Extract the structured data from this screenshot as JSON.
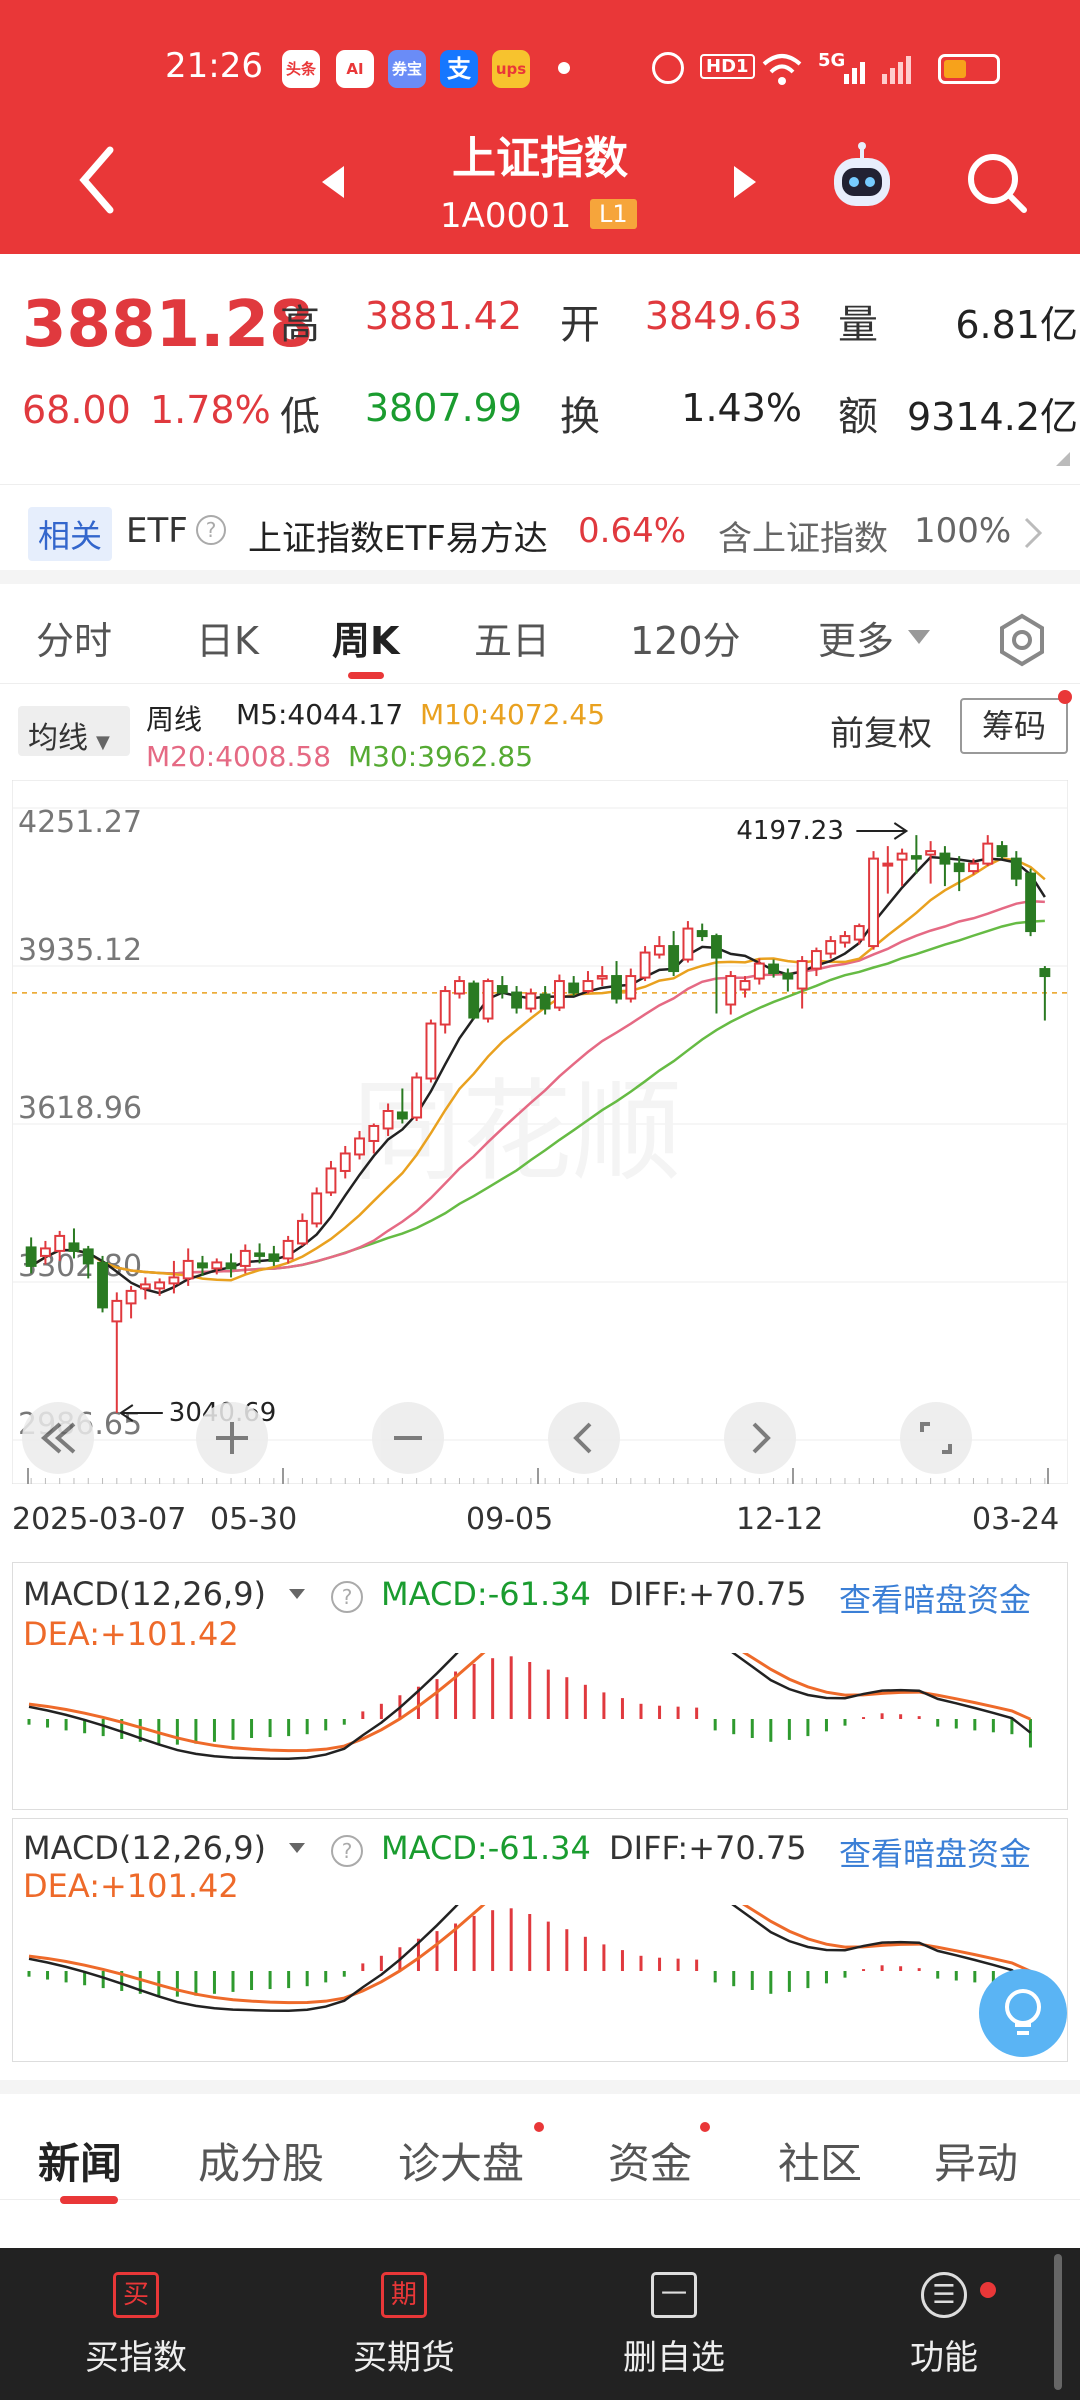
{
  "status_bar": {
    "time": "21:26",
    "apps": [
      "头条",
      "AI",
      "券宝",
      "支",
      "ups"
    ],
    "icons": [
      "alarm-icon",
      "hd-icon",
      "wifi-icon",
      "signal-5g-icon",
      "signal-icon",
      "battery-icon"
    ],
    "hd": "HD1",
    "net": "5G"
  },
  "header": {
    "title": "上证指数",
    "code": "1A0001",
    "level": "L1"
  },
  "quote": {
    "price": "3881.28",
    "change": "68.00",
    "change_pct": "1.78%",
    "high_label": "高",
    "high": "3881.42",
    "open_label": "开",
    "open": "3849.63",
    "vol_label": "量",
    "vol": "6.81亿",
    "low_label": "低",
    "low": "3807.99",
    "turn_label": "换",
    "turn": "1.43%",
    "amt_label": "额",
    "amt": "9314.2亿"
  },
  "etf": {
    "tag": "相关",
    "etf_label": "ETF",
    "etf_name": "上证指数ETF易方达",
    "etf_pct": "0.64%",
    "contain_label": "含上证指数",
    "contain_pct": "100%"
  },
  "period_tabs": [
    "分时",
    "日K",
    "周K",
    "五日",
    "120分",
    "更多"
  ],
  "active_tab": 2,
  "chart_header": {
    "ma_select": "均线",
    "period": "周线",
    "m5": "M5:4044.17",
    "m10": "M10:4072.45",
    "m20": "M20:4008.58",
    "m30": "M30:3962.85",
    "adjust": "前复权",
    "chip": "筹码"
  },
  "chart_data": {
    "type": "candlestick",
    "y_ticks": [
      "4251.27",
      "3935.12",
      "3618.96",
      "3302.80",
      "2986.65"
    ],
    "ylim": [
      2986.65,
      4251.27
    ],
    "x_labels": [
      "2025-03-07",
      "05-30",
      "09-05",
      "12-12",
      "03-24"
    ],
    "max_label": "4197.23",
    "min_label": "3040.69",
    "candles": [
      [
        3372,
        3335,
        3392,
        3320
      ],
      [
        3355,
        3370,
        3385,
        3338
      ],
      [
        3365,
        3395,
        3405,
        3345
      ],
      [
        3380,
        3365,
        3410,
        3350
      ],
      [
        3368,
        3340,
        3375,
        3310
      ],
      [
        3341,
        3252,
        3355,
        3242
      ],
      [
        3224,
        3265,
        3282,
        3041
      ],
      [
        3260,
        3285,
        3295,
        3230
      ],
      [
        3290,
        3298,
        3312,
        3268
      ],
      [
        3290,
        3302,
        3310,
        3275
      ],
      [
        3300,
        3312,
        3345,
        3280
      ],
      [
        3310,
        3345,
        3370,
        3295
      ],
      [
        3340,
        3332,
        3355,
        3315
      ],
      [
        3330,
        3342,
        3350,
        3318
      ],
      [
        3340,
        3330,
        3360,
        3312
      ],
      [
        3335,
        3365,
        3378,
        3320
      ],
      [
        3360,
        3355,
        3380,
        3340
      ],
      [
        3358,
        3345,
        3375,
        3335
      ],
      [
        3350,
        3385,
        3395,
        3340
      ],
      [
        3380,
        3425,
        3440,
        3375
      ],
      [
        3420,
        3480,
        3492,
        3412
      ],
      [
        3482,
        3530,
        3545,
        3475
      ],
      [
        3525,
        3560,
        3575,
        3510
      ],
      [
        3558,
        3590,
        3605,
        3548
      ],
      [
        3585,
        3615,
        3620,
        3560
      ],
      [
        3610,
        3645,
        3660,
        3595
      ],
      [
        3642,
        3630,
        3690,
        3620
      ],
      [
        3632,
        3712,
        3722,
        3625
      ],
      [
        3710,
        3820,
        3828,
        3702
      ],
      [
        3818,
        3885,
        3895,
        3800
      ],
      [
        3880,
        3905,
        3915,
        3870
      ],
      [
        3900,
        3832,
        3906,
        3828
      ],
      [
        3830,
        3905,
        3910,
        3822
      ],
      [
        3895,
        3882,
        3915,
        3870
      ],
      [
        3882,
        3852,
        3895,
        3840
      ],
      [
        3850,
        3880,
        3890,
        3842
      ],
      [
        3878,
        3850,
        3895,
        3838
      ],
      [
        3852,
        3905,
        3918,
        3845
      ],
      [
        3900,
        3882,
        3915,
        3875
      ],
      [
        3885,
        3905,
        3925,
        3880
      ],
      [
        3910,
        3915,
        3935,
        3895
      ],
      [
        3915,
        3870,
        3945,
        3860
      ],
      [
        3870,
        3915,
        3930,
        3862
      ],
      [
        3912,
        3962,
        3975,
        3905
      ],
      [
        3958,
        3975,
        3995,
        3950
      ],
      [
        3975,
        3925,
        4005,
        3915
      ],
      [
        3948,
        4010,
        4025,
        3942
      ],
      [
        4005,
        3995,
        4020,
        3985
      ],
      [
        3995,
        3952,
        4000,
        3840
      ],
      [
        3858,
        3915,
        3925,
        3838
      ],
      [
        3888,
        3905,
        3915,
        3872
      ],
      [
        3910,
        3940,
        3950,
        3898
      ],
      [
        3938,
        3921,
        3948,
        3912
      ],
      [
        3920,
        3910,
        3930,
        3884
      ],
      [
        3890,
        3945,
        3955,
        3850
      ],
      [
        3930,
        3965,
        3972,
        3915
      ],
      [
        3960,
        3985,
        3995,
        3950
      ],
      [
        3982,
        3995,
        4005,
        3972
      ],
      [
        3988,
        4015,
        4020,
        3978
      ],
      [
        3975,
        4150,
        4165,
        3968
      ],
      [
        4138,
        4140,
        4175,
        4080
      ],
      [
        4148,
        4160,
        4170,
        4095
      ],
      [
        4155,
        4150,
        4197,
        4120
      ],
      [
        4158,
        4165,
        4185,
        4100
      ],
      [
        4160,
        4140,
        4175,
        4095
      ],
      [
        4140,
        4125,
        4155,
        4085
      ],
      [
        4125,
        4140,
        4150,
        4118
      ],
      [
        4140,
        4180,
        4197,
        4135
      ],
      [
        4175,
        4155,
        4185,
        4150
      ],
      [
        4150,
        4110,
        4165,
        4095
      ],
      [
        4120,
        4005,
        4130,
        3995
      ],
      [
        3929,
        3915,
        3935,
        3826
      ]
    ],
    "ma5_color": "#222222",
    "ma10_color": "#e9a11f",
    "ma20_color": "#e56a84",
    "ma30_color": "#66bb44"
  },
  "macd": {
    "select": "MACD(12,26,9)",
    "macd": "MACD:-61.34",
    "diff": "DIFF:+70.75",
    "dea": "DEA:+101.42",
    "link": "查看暗盘资金",
    "bars": [
      -6,
      -9,
      -12,
      -15,
      -18,
      -21,
      -24,
      -26,
      -27,
      -26,
      -24,
      -22,
      -20,
      -19,
      -18,
      -16,
      -12,
      -6,
      8,
      16,
      25,
      34,
      42,
      50,
      58,
      64,
      66,
      60,
      52,
      44,
      36,
      28,
      22,
      16,
      14,
      13,
      12,
      -12,
      -16,
      -20,
      -24,
      -22,
      -18,
      -13,
      -7,
      2,
      6,
      5,
      3,
      -8,
      -10,
      -12,
      -14,
      -16,
      -30
    ]
  },
  "bottom_tabs": [
    "新闻",
    "成分股",
    "诊大盘",
    "资金",
    "社区",
    "异动"
  ],
  "bottom_bar": [
    {
      "icon": "买",
      "label": "买指数"
    },
    {
      "icon": "期",
      "label": "买期货"
    },
    {
      "icon": "一",
      "label": "删自选"
    },
    {
      "icon": "☰",
      "label": "功能"
    }
  ]
}
